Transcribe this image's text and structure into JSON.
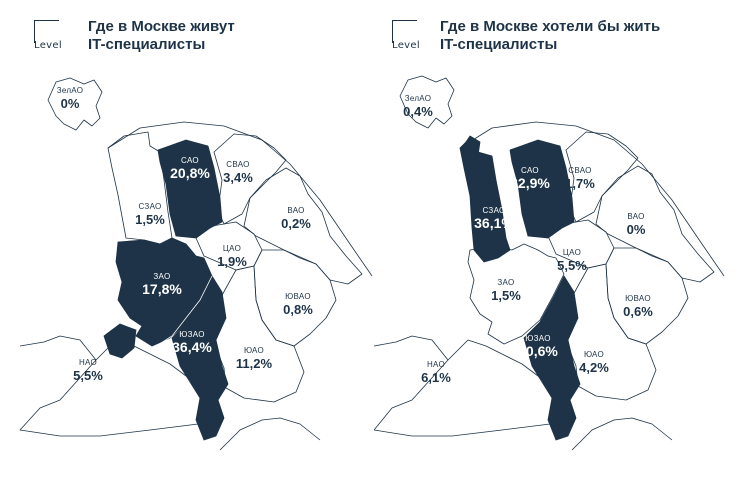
{
  "brand": {
    "logo_text": "Level"
  },
  "colors": {
    "highlight": "#1e3347",
    "outline": "#1e3347",
    "background": "#ffffff"
  },
  "panels": [
    {
      "title_line1": "Где в Москве живут",
      "title_line2": "IT-специалисты",
      "districts": {
        "zelao": {
          "name": "ЗелАО",
          "value": "0%"
        },
        "sao": {
          "name": "САО",
          "value": "20,8%"
        },
        "svao": {
          "name": "СВАО",
          "value": "3,4%"
        },
        "szao": {
          "name": "СЗАО",
          "value": "1,5%"
        },
        "vao": {
          "name": "ВАО",
          "value": "0,2%"
        },
        "cao": {
          "name": "ЦАО",
          "value": "1,9%"
        },
        "zao": {
          "name": "ЗАО",
          "value": "17,8%"
        },
        "yuvao": {
          "name": "ЮВАО",
          "value": "0,8%"
        },
        "yuzao": {
          "name": "ЮЗАО",
          "value": "36,4%"
        },
        "yuao": {
          "name": "ЮАО",
          "value": "11,2%"
        },
        "nao": {
          "name": "НАО",
          "value": "5,5%"
        }
      }
    },
    {
      "title_line1": "Где в Москве хотели бы жить",
      "title_line2": "IT-специалисты",
      "districts": {
        "zelao": {
          "name": "ЗелАО",
          "value": "0,4%"
        },
        "sao": {
          "name": "САО",
          "value": "32,9%"
        },
        "svao": {
          "name": "СВАО",
          "value": "1,7%"
        },
        "szao": {
          "name": "СЗАО",
          "value": "36,1%"
        },
        "vao": {
          "name": "ВАО",
          "value": "0%"
        },
        "cao": {
          "name": "ЦАО",
          "value": "5,5%"
        },
        "zao": {
          "name": "ЗАО",
          "value": "1,5%"
        },
        "yuvao": {
          "name": "ЮВАО",
          "value": "0,6%"
        },
        "yuzao": {
          "name": "ЮЗАО",
          "value": "10,6%"
        },
        "yuao": {
          "name": "ЮАО",
          "value": "4,2%"
        },
        "nao": {
          "name": "НАО",
          "value": "6,1%"
        }
      }
    }
  ]
}
